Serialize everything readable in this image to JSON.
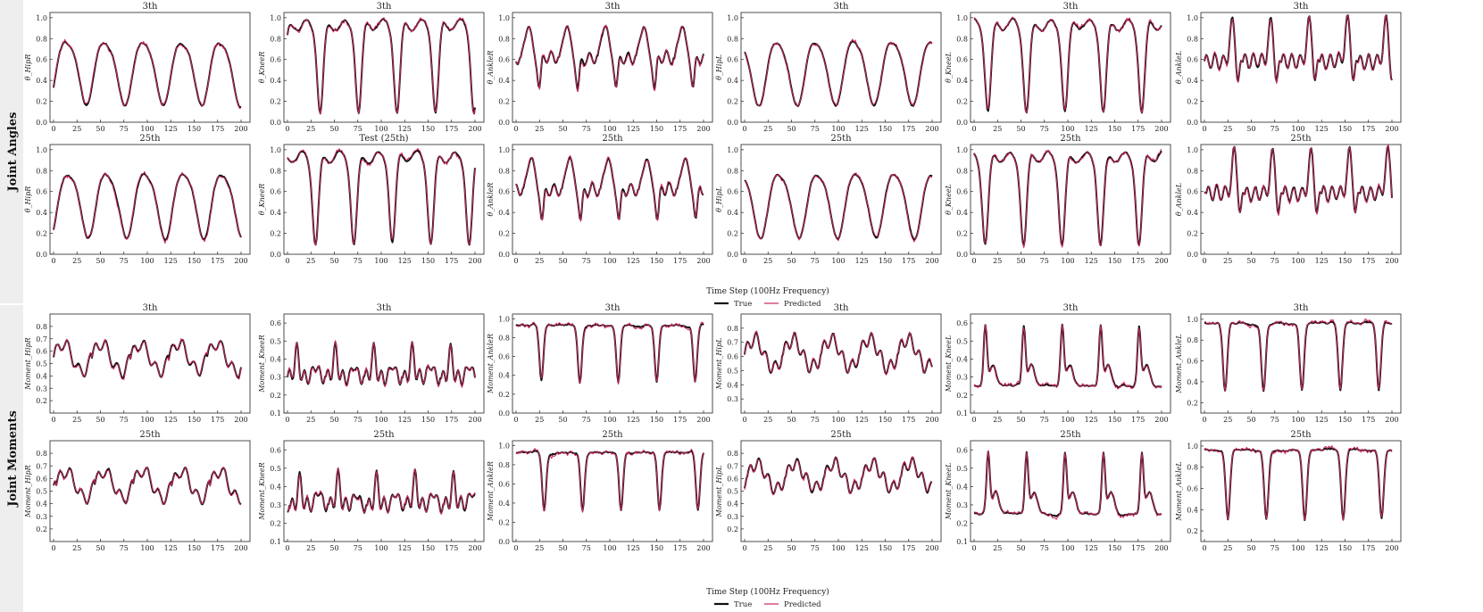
{
  "figure": {
    "row_groups": [
      "Joint Angles",
      "Joint Moments"
    ],
    "xlabel": "Time Step (100Hz Frequency)",
    "legend": {
      "true_label": "True",
      "pred_label": "Predicted"
    },
    "colors": {
      "true": "#111111",
      "pred": "#c8285a",
      "band": "#eeeeee"
    }
  },
  "chart_data": {
    "type": "line",
    "x_range": [
      0,
      200
    ],
    "x_ticks": [
      0,
      25,
      50,
      75,
      100,
      125,
      150,
      175,
      200
    ],
    "grid": false,
    "legend_position": "below each group, centered",
    "rows": [
      {
        "group": "Joint Angles",
        "titles": [
          "3th",
          "3th",
          "3th",
          "3th",
          "3th",
          "3th"
        ],
        "ylabels": [
          "θ_HipR",
          "θ_KneeR",
          "θ_AnkleR",
          "θ_HipL",
          "θ_KneeL",
          "θ_AnkleL"
        ],
        "ylim": [
          0,
          1.05
        ],
        "yticks": [
          0.0,
          0.2,
          0.4,
          0.6,
          0.8,
          1.0
        ],
        "panels": [
          {
            "kind": "hip",
            "phase": 0,
            "seed": 1
          },
          {
            "kind": "knee",
            "phase": 15,
            "seed": 2
          },
          {
            "kind": "ankle",
            "phase": 5,
            "seed": 3
          },
          {
            "kind": "hip",
            "phase": -20,
            "seed": 4
          },
          {
            "kind": "knee",
            "phase": -5,
            "seed": 5
          },
          {
            "kind": "ankleL",
            "phase": 0,
            "seed": 6
          }
        ]
      },
      {
        "group": "Joint Angles",
        "titles": [
          "25th",
          "Test (25th)",
          "25th",
          "25th",
          "25th",
          "25th"
        ],
        "ylabels": [
          "θ_HipR",
          "θ_KneeR",
          "θ_AnkleR",
          "θ_HipL",
          "θ_KneeL",
          "θ_AnkleL"
        ],
        "ylim": [
          0,
          1.05
        ],
        "yticks": [
          0.0,
          0.2,
          0.4,
          0.6,
          0.8,
          1.0
        ],
        "panels": [
          {
            "kind": "hip",
            "phase": 2,
            "seed": 7
          },
          {
            "kind": "knee",
            "phase": 10,
            "seed": 8
          },
          {
            "kind": "ankle",
            "phase": 8,
            "seed": 9
          },
          {
            "kind": "hip",
            "phase": -18,
            "seed": 10
          },
          {
            "kind": "knee",
            "phase": -8,
            "seed": 11
          },
          {
            "kind": "ankleL",
            "phase": 2,
            "seed": 12
          }
        ]
      },
      {
        "group": "Joint Moments",
        "titles": [
          "3th",
          "3th",
          "3th",
          "3th",
          "3th",
          "3th"
        ],
        "ylabels": [
          "Moment_HipR",
          "Moment_KneeR",
          "Moment_AnkleR",
          "Moment_HipL",
          "Moment_KneeL",
          "Moment_AnkleL"
        ],
        "ylims": [
          [
            0.1,
            0.9
          ],
          [
            0.1,
            0.65
          ],
          [
            0.0,
            1.05
          ],
          [
            0.2,
            0.9
          ],
          [
            0.1,
            0.65
          ],
          [
            0.1,
            1.05
          ]
        ],
        "ytickss": [
          [
            0.2,
            0.3,
            0.4,
            0.5,
            0.6,
            0.7,
            0.8
          ],
          [
            0.1,
            0.2,
            0.3,
            0.4,
            0.5,
            0.6
          ],
          [
            0.0,
            0.2,
            0.4,
            0.6,
            0.8,
            1.0
          ],
          [
            0.3,
            0.4,
            0.5,
            0.6,
            0.7,
            0.8
          ],
          [
            0.1,
            0.2,
            0.3,
            0.4,
            0.5,
            0.6
          ],
          [
            0.2,
            0.4,
            0.6,
            0.8,
            1.0
          ]
        ],
        "panels": [
          {
            "kind": "mhip",
            "phase": 0,
            "seed": 13
          },
          {
            "kind": "mknee",
            "phase": 0,
            "seed": 14
          },
          {
            "kind": "mankle",
            "phase": 5,
            "seed": 15
          },
          {
            "kind": "mhipL",
            "phase": 0,
            "seed": 16
          },
          {
            "kind": "mkneeL",
            "phase": 0,
            "seed": 17
          },
          {
            "kind": "mankleL",
            "phase": 0,
            "seed": 18
          }
        ]
      },
      {
        "group": "Joint Moments",
        "titles": [
          "25th",
          "25th",
          "25th",
          "25th",
          "25th",
          "25th"
        ],
        "ylabels": [
          "Moment_HipR",
          "Moment_KneeR",
          "Moment_AnkleR",
          "Moment_HipL",
          "Moment_KneeL",
          "Moment_AnkleL"
        ],
        "ylims": [
          [
            0.1,
            0.9
          ],
          [
            0.1,
            0.65
          ],
          [
            0.0,
            1.05
          ],
          [
            0.1,
            0.9
          ],
          [
            0.1,
            0.65
          ],
          [
            0.1,
            1.05
          ]
        ],
        "ytickss": [
          [
            0.2,
            0.3,
            0.4,
            0.5,
            0.6,
            0.7,
            0.8
          ],
          [
            0.1,
            0.2,
            0.3,
            0.4,
            0.5,
            0.6
          ],
          [
            0.0,
            0.2,
            0.4,
            0.6,
            0.8,
            1.0
          ],
          [
            0.2,
            0.3,
            0.4,
            0.5,
            0.6,
            0.7,
            0.8
          ],
          [
            0.1,
            0.2,
            0.3,
            0.4,
            0.5,
            0.6
          ],
          [
            0.2,
            0.4,
            0.6,
            0.8,
            1.0
          ]
        ],
        "panels": [
          {
            "kind": "mhip",
            "phase": 3,
            "seed": 19
          },
          {
            "kind": "mknee",
            "phase": 3,
            "seed": 20
          },
          {
            "kind": "mankle",
            "phase": 8,
            "seed": 21
          },
          {
            "kind": "mhipL",
            "phase": 3,
            "seed": 22
          },
          {
            "kind": "mkneeL",
            "phase": 3,
            "seed": 23
          },
          {
            "kind": "mankleL",
            "phase": 3,
            "seed": 24
          }
        ]
      }
    ]
  }
}
